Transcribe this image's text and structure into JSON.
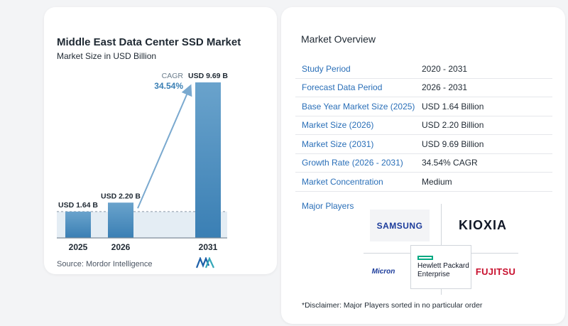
{
  "chart": {
    "title": "Middle East Data Center SSD Market",
    "subtitle": "Market Size in USD Billion",
    "source": "Source:  Mordor Intelligence"
  },
  "chart_data": {
    "type": "bar",
    "categories": [
      "2025",
      "2026",
      "2031"
    ],
    "values": [
      1.64,
      2.2,
      9.69
    ],
    "data_labels": [
      "USD 1.64 B",
      "USD 2.20 B",
      "USD 9.69 B"
    ],
    "annotation": {
      "label": "CAGR",
      "value": "34.54%"
    },
    "title": "Middle East Data Center SSD Market",
    "subtitle": "Market Size in USD Billion",
    "xlabel": "",
    "ylabel": "",
    "ylim": [
      0,
      10
    ],
    "grid": false,
    "colors": {
      "bar_top": "#6aa3cc",
      "bar_bottom": "#3a7fb4",
      "arrow": "#7aa9cf",
      "cagr_value": "#3a7fb4",
      "baseline": "#7e8c99"
    }
  },
  "overview": {
    "title": "Market Overview",
    "rows": [
      {
        "key": "Study Period",
        "value": "2020 - 2031"
      },
      {
        "key": "Forecast Data Period",
        "value": "2026 - 2031"
      },
      {
        "key": "Base Year Market Size (2025)",
        "value": "USD 1.64 Billion"
      },
      {
        "key": "Market Size (2026)",
        "value": "USD 2.20 Billion"
      },
      {
        "key": "Market Size (2031)",
        "value": "USD 9.69 Billion"
      },
      {
        "key": "Growth Rate (2026 - 2031)",
        "value": "34.54% CAGR"
      },
      {
        "key": "Market Concentration",
        "value": "Medium"
      }
    ]
  },
  "players": {
    "label": "Major Players",
    "logos": [
      "SAMSUNG",
      "KIOXIA",
      "Micron",
      "Hewlett Packard Enterprise",
      "FUJITSU"
    ],
    "hpe_line1": "Hewlett Packard",
    "hpe_line2": "Enterprise",
    "disclaimer": "*Disclaimer: Major Players sorted in no particular order"
  },
  "colors": {
    "accent": "#2a6fb8",
    "background": "#f3f4f6"
  }
}
